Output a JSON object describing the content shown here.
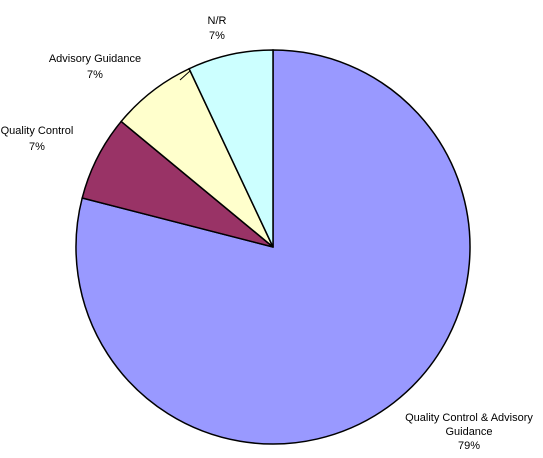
{
  "chart_data": {
    "type": "pie",
    "title": "",
    "start": "top",
    "direction": "clockwise",
    "slices": [
      {
        "label": [
          "Quality Control & Advisory",
          "Guidance"
        ],
        "percent_label": "79%",
        "value": 79,
        "color": "#9999ff"
      },
      {
        "label": [
          "Quality Control"
        ],
        "percent_label": "7%",
        "value": 7,
        "color": "#993366"
      },
      {
        "label": [
          "Advisory Guidance"
        ],
        "percent_label": "7%",
        "value": 7,
        "color": "#ffffcc"
      },
      {
        "label": [
          "N/R"
        ],
        "percent_label": "7%",
        "value": 7,
        "color": "#ccffff"
      }
    ]
  }
}
